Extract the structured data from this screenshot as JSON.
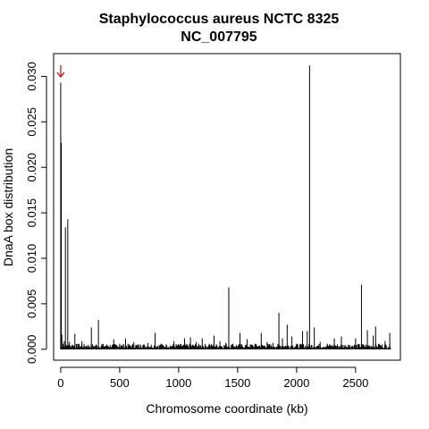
{
  "chart_data": {
    "type": "bar",
    "title": "Staphylococcus aureus NCTC 8325",
    "subtitle": "NC_007795",
    "xlabel": "Chromosome coordinate (kb)",
    "ylabel": "DnaA box distribution",
    "xlim": [
      -60,
      2880
    ],
    "ylim": [
      -0.0012,
      0.0325
    ],
    "xticks": [
      0,
      500,
      1000,
      1500,
      2000,
      2500
    ],
    "yticks": [
      0.0,
      0.005,
      0.01,
      0.015,
      0.02,
      0.025,
      0.03
    ],
    "ytick_labels": [
      "0.000",
      "0.005",
      "0.010",
      "0.015",
      "0.020",
      "0.025",
      "0.030"
    ],
    "grid": false,
    "annotation": {
      "symbol": "arrow",
      "x": 0,
      "color": "#cc0000"
    },
    "x": [
      0,
      5,
      10,
      20,
      30,
      40,
      50,
      60,
      75,
      100,
      120,
      150,
      180,
      220,
      260,
      300,
      320,
      350,
      400,
      450,
      500,
      550,
      580,
      620,
      680,
      740,
      800,
      850,
      900,
      960,
      1000,
      1050,
      1100,
      1150,
      1200,
      1260,
      1300,
      1350,
      1400,
      1425,
      1460,
      1520,
      1580,
      1650,
      1700,
      1750,
      1800,
      1850,
      1880,
      1920,
      1960,
      2000,
      2050,
      2090,
      2110,
      2150,
      2200,
      2260,
      2320,
      2380,
      2440,
      2500,
      2550,
      2600,
      2650,
      2670,
      2700,
      2750,
      2790
    ],
    "values": [
      0.0293,
      0.0227,
      0.0016,
      0.0006,
      0.0009,
      0.0134,
      0.0004,
      0.0143,
      0.0008,
      0.0005,
      0.0017,
      0.0006,
      0.0009,
      0.0004,
      0.0024,
      0.0005,
      0.0032,
      0.0006,
      0.0004,
      0.0011,
      0.0006,
      0.0012,
      0.0004,
      0.0008,
      0.0005,
      0.0007,
      0.0018,
      0.0006,
      0.0004,
      0.0009,
      0.0005,
      0.0012,
      0.0013,
      0.0008,
      0.0012,
      0.0006,
      0.0015,
      0.0009,
      0.0007,
      0.0068,
      0.0006,
      0.0018,
      0.0011,
      0.0006,
      0.0018,
      0.0008,
      0.0007,
      0.004,
      0.0012,
      0.0027,
      0.0014,
      0.0006,
      0.002,
      0.002,
      0.0312,
      0.0024,
      0.0008,
      0.0006,
      0.0012,
      0.0014,
      0.0005,
      0.0012,
      0.0071,
      0.0021,
      0.0015,
      0.0025,
      0.0006,
      0.0009,
      0.0018
    ],
    "baseline_noise": 0.0004,
    "series_color": "#000000"
  }
}
